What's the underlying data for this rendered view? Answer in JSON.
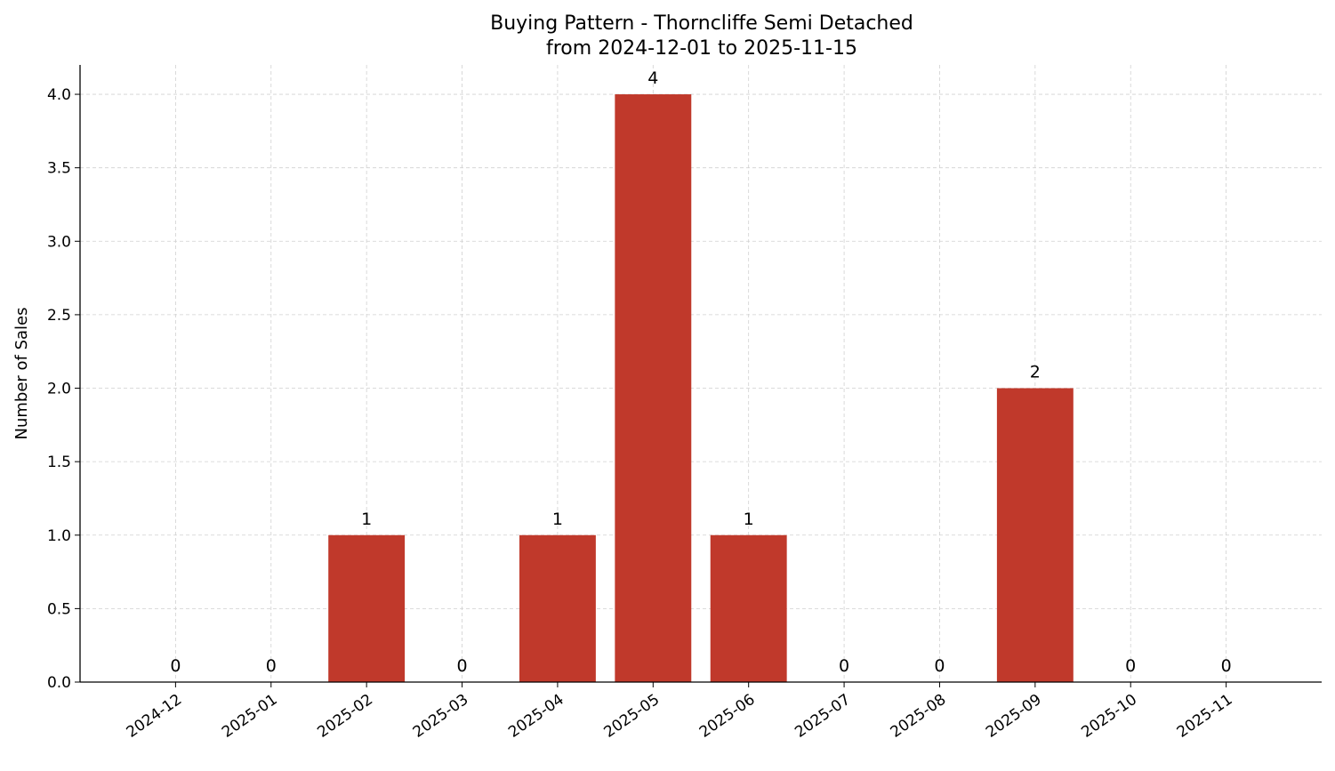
{
  "chart_data": {
    "type": "bar",
    "title": "Buying Pattern - Thorncliffe Semi Detached",
    "subtitle": "from 2024-12-01 to 2025-11-15",
    "xlabel": "",
    "ylabel": "Number of Sales",
    "categories": [
      "2024-12",
      "2025-01",
      "2025-02",
      "2025-03",
      "2025-04",
      "2025-05",
      "2025-06",
      "2025-07",
      "2025-08",
      "2025-09",
      "2025-10",
      "2025-11"
    ],
    "values": [
      0,
      0,
      1,
      0,
      1,
      4,
      1,
      0,
      0,
      2,
      0,
      0
    ],
    "ylim": [
      0,
      4.2
    ],
    "yticks": [
      "0.0",
      "0.5",
      "1.0",
      "1.5",
      "2.0",
      "2.5",
      "3.0",
      "3.5",
      "4.0"
    ],
    "grid": true,
    "bar_color": "#c0392b",
    "data_labels": true
  }
}
